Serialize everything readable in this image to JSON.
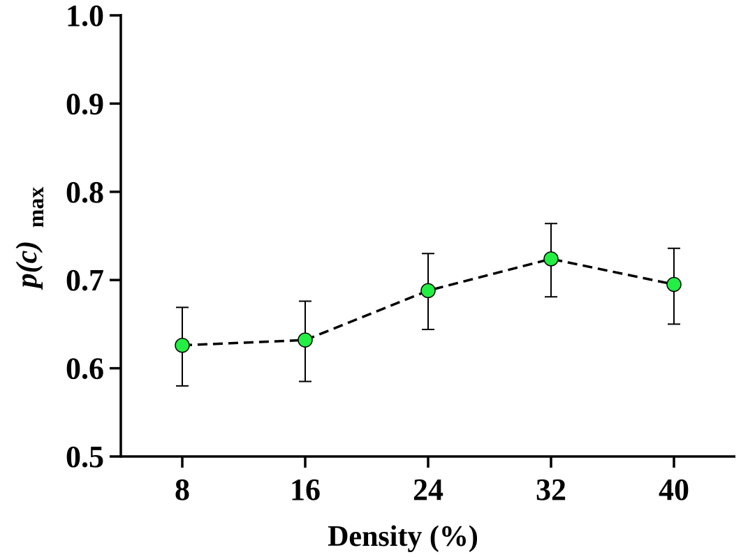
{
  "chart_data": {
    "type": "line",
    "title": "",
    "xlabel": "Density (%)",
    "ylabel_main": "p(c)",
    "ylabel_sub": "max",
    "x": [
      8,
      16,
      24,
      32,
      40
    ],
    "x_tick_labels": [
      "8",
      "16",
      "24",
      "32",
      "40"
    ],
    "xlim": [
      4,
      44
    ],
    "ylim": [
      0.5,
      1.0
    ],
    "y_ticks": [
      0.5,
      0.6,
      0.7,
      0.8,
      0.9,
      1.0
    ],
    "y_tick_labels": [
      "0.5",
      "0.6",
      "0.7",
      "0.8",
      "0.9",
      "1.0"
    ],
    "grid": false,
    "series": [
      {
        "name": "p(c) max",
        "values": [
          0.626,
          0.632,
          0.688,
          0.724,
          0.695
        ],
        "error_upper": [
          0.669,
          0.676,
          0.73,
          0.764,
          0.736
        ],
        "error_lower": [
          0.58,
          0.585,
          0.644,
          0.681,
          0.65
        ],
        "marker_color": "#22ee44",
        "line_style": "dashed",
        "line_color": "#000000"
      }
    ]
  }
}
